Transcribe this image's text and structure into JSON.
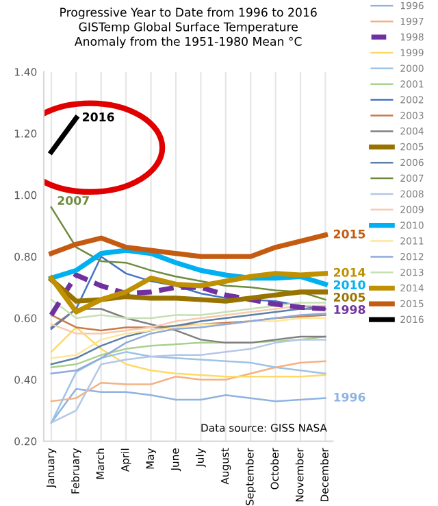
{
  "chart_data": {
    "type": "line",
    "title": "Progressive Year to Date from 1996 to 2016\nGISTemp Global Surface Temperature\nAnomaly from the 1951-1980 Mean °C",
    "categories": [
      "January",
      "February",
      "March",
      "April",
      "May",
      "June",
      "July",
      "August",
      "September",
      "October",
      "November",
      "December"
    ],
    "series": [
      {
        "name": "1996",
        "color": "#8db3e2",
        "values": [
          0.26,
          0.37,
          0.36,
          0.36,
          0.35,
          0.335,
          0.335,
          0.35,
          0.34,
          0.33,
          0.335,
          0.34
        ]
      },
      {
        "name": "1997",
        "color": "#f4b183",
        "values": [
          0.33,
          0.34,
          0.39,
          0.385,
          0.385,
          0.41,
          0.4,
          0.4,
          0.42,
          0.44,
          0.455,
          0.46
        ]
      },
      {
        "name": "1998",
        "color": "#7030a0",
        "line_style": "dashed",
        "values": [
          0.61,
          0.74,
          0.705,
          0.68,
          0.685,
          0.7,
          0.7,
          0.675,
          0.66,
          0.645,
          0.635,
          0.63
        ]
      },
      {
        "name": "1999",
        "color": "#ffd966",
        "values": [
          0.49,
          0.57,
          0.5,
          0.45,
          0.43,
          0.42,
          0.415,
          0.41,
          0.41,
          0.41,
          0.41,
          0.415
        ]
      },
      {
        "name": "2000",
        "color": "#9dc3e6",
        "values": [
          0.26,
          0.425,
          0.47,
          0.49,
          0.475,
          0.47,
          0.465,
          0.46,
          0.455,
          0.44,
          0.43,
          0.42
        ]
      },
      {
        "name": "2001",
        "color": "#a9d18e",
        "values": [
          0.44,
          0.45,
          0.48,
          0.5,
          0.51,
          0.515,
          0.52,
          0.52,
          0.52,
          0.525,
          0.53,
          0.54
        ]
      },
      {
        "name": "2002",
        "color": "#4472c4",
        "values": [
          0.565,
          0.63,
          0.8,
          0.745,
          0.72,
          0.705,
          0.68,
          0.665,
          0.66,
          0.655,
          0.64,
          0.63
        ]
      },
      {
        "name": "2003",
        "color": "#c97b4b",
        "values": [
          0.61,
          0.57,
          0.56,
          0.57,
          0.57,
          0.575,
          0.58,
          0.585,
          0.59,
          0.6,
          0.605,
          0.61
        ]
      },
      {
        "name": "2004",
        "color": "#7f7f7f",
        "values": [
          0.57,
          0.63,
          0.63,
          0.6,
          0.58,
          0.56,
          0.53,
          0.52,
          0.52,
          0.53,
          0.54,
          0.54
        ]
      },
      {
        "name": "2005",
        "color": "#997300",
        "values": [
          0.725,
          0.655,
          0.66,
          0.67,
          0.665,
          0.665,
          0.66,
          0.655,
          0.665,
          0.675,
          0.685,
          0.685
        ]
      },
      {
        "name": "2006",
        "color": "#5b7fa6",
        "values": [
          0.45,
          0.47,
          0.51,
          0.54,
          0.56,
          0.575,
          0.59,
          0.6,
          0.61,
          0.62,
          0.63,
          0.63
        ]
      },
      {
        "name": "2007",
        "color": "#6e8b3d",
        "values": [
          0.96,
          0.83,
          0.785,
          0.78,
          0.755,
          0.735,
          0.72,
          0.705,
          0.7,
          0.69,
          0.685,
          0.66
        ]
      },
      {
        "name": "2008",
        "color": "#b4c7e7",
        "values": [
          0.26,
          0.3,
          0.45,
          0.465,
          0.475,
          0.48,
          0.48,
          0.49,
          0.5,
          0.52,
          0.53,
          0.53
        ]
      },
      {
        "name": "2009",
        "color": "#f8cbad",
        "values": [
          0.58,
          0.55,
          0.55,
          0.56,
          0.57,
          0.59,
          0.6,
          0.61,
          0.62,
          0.63,
          0.64,
          0.64
        ]
      },
      {
        "name": "2010",
        "color": "#00b0f0",
        "values": [
          0.73,
          0.755,
          0.81,
          0.82,
          0.81,
          0.78,
          0.755,
          0.74,
          0.73,
          0.73,
          0.735,
          0.71
        ]
      },
      {
        "name": "2011",
        "color": "#ffe699",
        "values": [
          0.47,
          0.48,
          0.53,
          0.55,
          0.56,
          0.57,
          0.58,
          0.58,
          0.59,
          0.59,
          0.6,
          0.6
        ]
      },
      {
        "name": "2012",
        "color": "#8faadc",
        "values": [
          0.42,
          0.43,
          0.47,
          0.52,
          0.55,
          0.565,
          0.57,
          0.58,
          0.59,
          0.6,
          0.61,
          0.615
        ]
      },
      {
        "name": "2013",
        "color": "#c5e0b4",
        "values": [
          0.66,
          0.6,
          0.61,
          0.6,
          0.6,
          0.61,
          0.61,
          0.62,
          0.63,
          0.64,
          0.65,
          0.65
        ]
      },
      {
        "name": "2014",
        "color": "#bf9000",
        "values": [
          0.73,
          0.62,
          0.66,
          0.685,
          0.73,
          0.71,
          0.705,
          0.72,
          0.735,
          0.745,
          0.74,
          0.745
        ]
      },
      {
        "name": "2015",
        "color": "#c55a11",
        "values": [
          0.81,
          0.84,
          0.86,
          0.83,
          0.82,
          0.81,
          0.8,
          0.8,
          0.8,
          0.83,
          0.85,
          0.87
        ]
      },
      {
        "name": "2016",
        "color": "#000000",
        "values": [
          1.14,
          1.25,
          null,
          null,
          null,
          null,
          null,
          null,
          null,
          null,
          null,
          null
        ]
      }
    ],
    "ylim": [
      0.2,
      1.4
    ],
    "yticks": [
      {
        "value": 0.2,
        "label": "0.20"
      },
      {
        "value": 0.4,
        "label": "0.40"
      },
      {
        "value": 0.6,
        "label": "0.60"
      },
      {
        "value": 0.8,
        "label": "0.80"
      },
      {
        "value": 1.0,
        "label": "1.00"
      },
      {
        "value": 1.2,
        "label": "1.20"
      },
      {
        "value": 1.4,
        "label": "1.40"
      }
    ],
    "grid": "x",
    "legend": "right",
    "annotations": [
      {
        "text": "2016",
        "x": "February",
        "y": 1.25
      },
      {
        "text": "2007",
        "x": "January",
        "y": 0.96
      },
      {
        "text": "2015",
        "x": "December",
        "y": 0.87
      },
      {
        "text": "2014",
        "x": "December",
        "y": 0.745
      },
      {
        "text": "2010",
        "x": "December",
        "y": 0.71
      },
      {
        "text": "2005",
        "x": "December",
        "y": 0.685
      },
      {
        "text": "1998",
        "x": "December",
        "y": 0.63
      },
      {
        "text": "1996",
        "x": "December",
        "y": 0.34
      },
      "Data source: GISS NASA"
    ]
  }
}
